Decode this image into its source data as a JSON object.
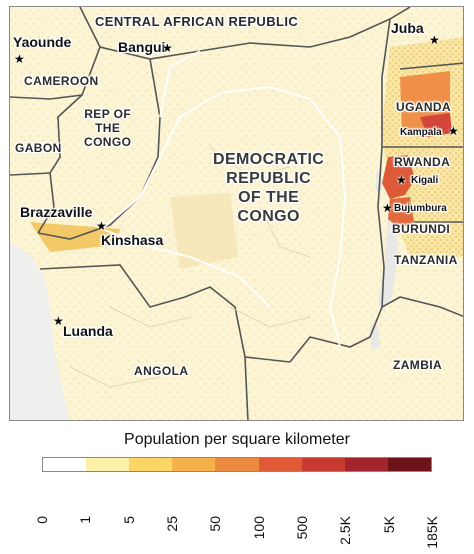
{
  "countries": {
    "car": "CENTRAL AFRICAN REPUBLIC",
    "cameroon": "CAMEROON",
    "gabon": "GABON",
    "rep_congo": "REP OF THE CONGO",
    "drc": "DEMOCRATIC REPUBLIC OF THE CONGO",
    "uganda": "UGANDA",
    "rwanda": "RWANDA",
    "burundi": "BURUNDI",
    "tanzania": "TANZANIA",
    "angola": "ANGOLA",
    "zambia": "ZAMBIA"
  },
  "country_lines": {
    "rep_congo": [
      "REP OF",
      "THE",
      "CONGO"
    ],
    "drc": [
      "DEMOCRATIC",
      "REPUBLIC",
      "OF THE",
      "CONGO"
    ]
  },
  "cities": {
    "yaounde": "Yaounde",
    "bangui": "Bangui",
    "juba": "Juba",
    "kampala": "Kampala",
    "kigali": "Kigali",
    "bujumbura": "Bujumbura",
    "brazzaville": "Brazzaville",
    "kinshasa": "Kinshasa",
    "luanda": "Luanda"
  },
  "legend": {
    "title": "Population per square kilometer",
    "ticks": [
      "0",
      "1",
      "5",
      "25",
      "50",
      "100",
      "500",
      "2.5K",
      "5K",
      "185K"
    ],
    "colors": [
      "#ffffff",
      "#fffbea",
      "#fdf0a8",
      "#fbd664",
      "#f6b04a",
      "#ee8940",
      "#df5a35",
      "#c63a32",
      "#a3242a",
      "#6e1418"
    ]
  },
  "map_colors": {
    "land": "#faf3d4",
    "water": "#eeeeec",
    "border": "#555555",
    "river": "#ffffff"
  },
  "icons": {
    "capital": "star-icon"
  }
}
